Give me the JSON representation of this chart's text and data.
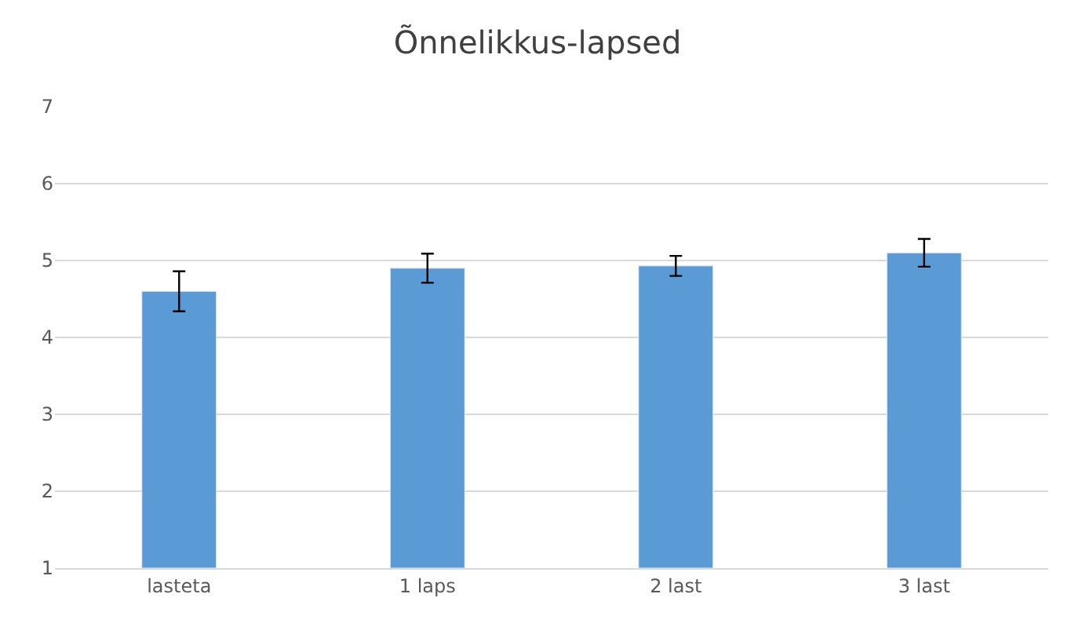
{
  "chart_data": {
    "type": "bar",
    "title": "Õnnelikkus-lapsed",
    "categories": [
      "lasteta",
      "1 laps",
      "2 last",
      "3 last"
    ],
    "values": [
      4.6,
      4.9,
      4.93,
      5.1
    ],
    "errors": [
      0.26,
      0.19,
      0.13,
      0.18
    ],
    "color": "#5b9bd5",
    "ylim": [
      1,
      7
    ],
    "yticks": [
      1,
      2,
      3,
      4,
      5,
      6,
      7
    ],
    "grid": "y",
    "legend": false
  }
}
